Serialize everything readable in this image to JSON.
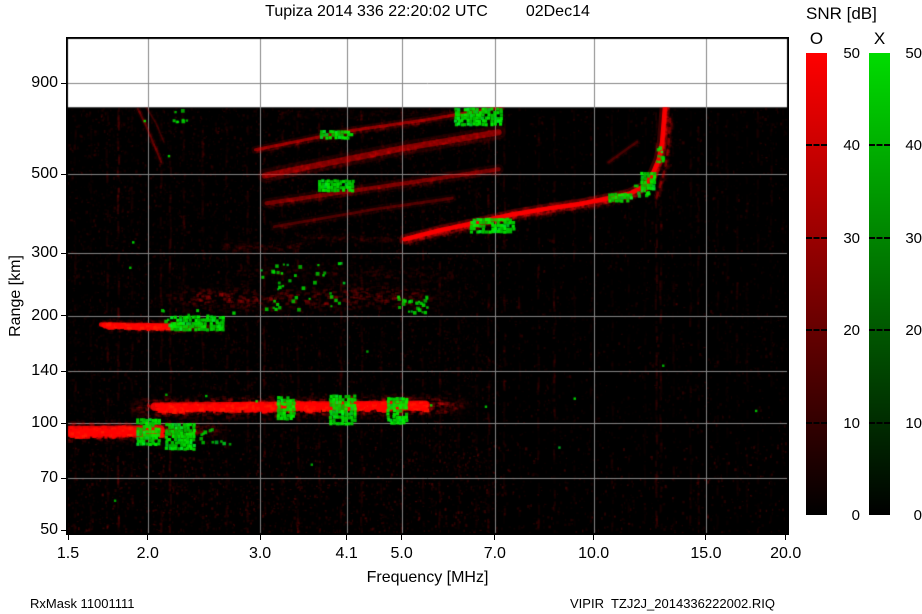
{
  "title": {
    "site_line": "Tupiza 2014 336 22:20:02 UTC",
    "date": "02Dec14"
  },
  "colorbar": {
    "title": "SNR [dB]",
    "min": 0,
    "max": 50,
    "tick_values": [
      50,
      40,
      30,
      20,
      10,
      0
    ],
    "tick_labels": [
      "50",
      "40",
      "30",
      "20",
      "10",
      "0"
    ],
    "bars": [
      {
        "label": "O",
        "polarization": "ordinary",
        "top_color": "#ff0000"
      },
      {
        "label": "X",
        "polarization": "extraordinary",
        "top_color": "#00dc00"
      }
    ]
  },
  "footer": {
    "rx_mask": "RxMask 11001111",
    "file": "VIPIR  TZJ2J_2014336222002.RIQ"
  },
  "chart_data": {
    "type": "heatmap",
    "title": "Tupiza 2014 336 22:20:02 UTC 02Dec14",
    "xlabel": "Frequency [MHz]",
    "ylabel": "Range [km]",
    "x_axis": {
      "scale": "log",
      "unit": "MHz",
      "min": 1.489,
      "max": 20.24,
      "tick_values": [
        1.5,
        2,
        3,
        4.1,
        5,
        7,
        10,
        15,
        20
      ],
      "tick_labels": [
        "1.5",
        "2.0",
        "3.0",
        "4.1",
        "5.0",
        "7.0",
        "10.0",
        "15.0",
        "20.0"
      ],
      "grid_values": [
        2,
        3,
        4.1,
        5,
        7,
        10,
        15
      ]
    },
    "y_axis": {
      "scale": "log",
      "unit": "km",
      "min": 48.5,
      "max": 1213,
      "tick_values": [
        900,
        500,
        300,
        200,
        140,
        100,
        70,
        50
      ],
      "tick_labels": [
        "900",
        "500",
        "300",
        "200",
        "140",
        "100",
        "70",
        "50"
      ],
      "grid_values": [
        900,
        500,
        300,
        200,
        140,
        100,
        70
      ]
    },
    "snr_scale": {
      "unit": "dB",
      "min": 0,
      "max": 50,
      "o_color": "#ff0000",
      "x_color": "#00dc00"
    },
    "data_max_range_km": 770,
    "layers": {
      "bands": [
        {
          "name": "es-layer-110km",
          "pol": "O",
          "f0": 1.86,
          "f1": 6.4,
          "bright_f0": 2.05,
          "bright_f1": 5.45,
          "r": 111,
          "r2": 113,
          "thick": 11,
          "glow": 9,
          "intensity": 1,
          "solid": true
        },
        {
          "name": "es-layer-95km",
          "pol": "O",
          "f0": 1.489,
          "f1": 2.69,
          "bright_f0": 1.489,
          "bright_f1": 2.09,
          "r": 95,
          "r2": 96,
          "thick": 13,
          "glow": 7,
          "intensity": 1,
          "solid": true
        },
        {
          "name": "spread-band-220km",
          "pol": "O",
          "f0": 2.0,
          "f1": 6.1,
          "bright_f0": 2.45,
          "bright_f1": 4.95,
          "r": 224,
          "r2": 228,
          "thick": 11,
          "glow": 13,
          "intensity": 0.55
        },
        {
          "name": "fuzz-265km",
          "pol": "O",
          "f0": 2.75,
          "f1": 6.0,
          "r": 268,
          "r2": 262,
          "thick": 9,
          "glow": 10,
          "intensity": 0.22
        },
        {
          "name": "band-190km",
          "pol": "O",
          "f0": 1.68,
          "f1": 2.66,
          "bright_f0": 1.69,
          "bright_f1": 2.17,
          "r": 189,
          "r2": 187,
          "thick": 6,
          "glow": 5,
          "intensity": 0.8,
          "solid": true
        },
        {
          "name": "faint-315km",
          "pol": "O",
          "f0": 2.6,
          "f1": 3.5,
          "r": 316,
          "r2": 312,
          "thick": 5,
          "glow": 6,
          "intensity": 0.26
        },
        {
          "name": "faint-332km",
          "pol": "O",
          "f0": 3.4,
          "f1": 5.2,
          "r": 334,
          "r2": 328,
          "thick": 4,
          "glow": 5,
          "intensity": 0.2
        },
        {
          "name": "topside-fuzz-745km",
          "pol": "O",
          "f0": 3.2,
          "f1": 6.3,
          "r": 745,
          "r2": 750,
          "thick": 7,
          "glow": 7,
          "intensity": 0.13
        }
      ],
      "oblique_traces": [
        {
          "name": "oblique-1",
          "pol": "O",
          "pts": [
            [
              2.95,
              585
            ],
            [
              4.15,
              662
            ],
            [
              5.5,
              712
            ],
            [
              7.15,
              772
            ]
          ],
          "w": 3,
          "glow": 5,
          "intensity": 0.5
        },
        {
          "name": "oblique-2",
          "pol": "O",
          "pts": [
            [
              3.05,
              495
            ],
            [
              4.95,
              588
            ],
            [
              7.1,
              655
            ]
          ],
          "w": 6,
          "glow": 8,
          "intensity": 0.45
        },
        {
          "name": "oblique-3",
          "pol": "O",
          "pts": [
            [
              3.07,
              414
            ],
            [
              5.0,
              470
            ],
            [
              7.1,
              516
            ]
          ],
          "w": 4,
          "glow": 6,
          "intensity": 0.4
        },
        {
          "name": "oblique-4",
          "pol": "O",
          "pts": [
            [
              3.16,
              356
            ],
            [
              4.6,
              400
            ],
            [
              6.0,
              428
            ]
          ],
          "w": 3,
          "glow": 5,
          "intensity": 0.26
        },
        {
          "name": "oblique-5",
          "pol": "O",
          "pts": [
            [
              10.55,
              540
            ],
            [
              11.7,
              616
            ]
          ],
          "w": 2.5,
          "glow": 3,
          "intensity": 0.25
        },
        {
          "name": "left-arc-1",
          "pol": "O",
          "pts": [
            [
              1.93,
              762
            ],
            [
              1.99,
              680
            ],
            [
              2.05,
              600
            ],
            [
              2.1,
              540
            ]
          ],
          "w": 2,
          "glow": 3,
          "intensity": 0.3
        },
        {
          "name": "left-arc-2",
          "pol": "O",
          "pts": [
            [
              1.99,
              770
            ],
            [
              2.06,
              695
            ],
            [
              2.12,
              615
            ]
          ],
          "w": 1.5,
          "glow": 2,
          "intensity": 0.2
        }
      ],
      "f_trace": {
        "name": "f-layer-trace",
        "pol": "O",
        "w": 4.5,
        "glow": 6,
        "intensity": 1,
        "pts": [
          [
            5.05,
            328
          ],
          [
            5.75,
            348
          ],
          [
            6.4,
            362
          ],
          [
            7.45,
            385
          ],
          [
            8.45,
            400
          ],
          [
            9.5,
            412
          ],
          [
            10.7,
            430
          ],
          [
            11.4,
            441
          ],
          [
            12.0,
            462
          ],
          [
            12.4,
            505
          ],
          [
            12.65,
            550
          ],
          [
            12.8,
            612
          ],
          [
            12.88,
            700
          ],
          [
            12.93,
            768
          ]
        ]
      },
      "f_trace_x_mode": {
        "name": "f-layer-trace-x",
        "pol": "O",
        "w": 2.5,
        "glow": 3,
        "intensity": 0.4,
        "dashed": true,
        "pts": [
          [
            12.55,
            430
          ],
          [
            12.95,
            520
          ],
          [
            13.1,
            610
          ],
          [
            13.18,
            715
          ]
        ]
      },
      "x_patches": [
        [
          3.19,
          3.4,
          102,
          119
        ],
        [
          3.85,
          4.2,
          100,
          120
        ],
        [
          4.74,
          5.08,
          101,
          118
        ],
        [
          1.92,
          2.08,
          88,
          103
        ],
        [
          2.13,
          2.36,
          85,
          100
        ],
        [
          2.17,
          2.63,
          185,
          200
        ],
        [
          3.7,
          4.18,
          450,
          482
        ],
        [
          3.72,
          4.15,
          628,
          664
        ],
        [
          6.05,
          7.15,
          695,
          768
        ],
        [
          6.4,
          7.5,
          344,
          376
        ],
        [
          10.55,
          11.4,
          418,
          442
        ],
        [
          11.85,
          12.45,
          452,
          507
        ]
      ],
      "x_clusters": [
        {
          "f0": 3.0,
          "f1": 4.1,
          "r0": 210,
          "r1": 285,
          "n": 40
        },
        {
          "f0": 4.92,
          "f1": 5.5,
          "r0": 206,
          "r1": 228,
          "n": 26
        },
        {
          "f0": 2.08,
          "f1": 2.72,
          "r0": 186,
          "r1": 210,
          "n": 22
        },
        {
          "f0": 2.18,
          "f1": 2.3,
          "r0": 690,
          "r1": 765,
          "n": 8
        },
        {
          "f0": 2.38,
          "f1": 2.75,
          "r0": 86,
          "r1": 98,
          "n": 12
        },
        {
          "f0": 12.5,
          "f1": 12.85,
          "r0": 540,
          "r1": 600,
          "n": 10
        },
        {
          "f0": 11.45,
          "f1": 12.3,
          "r0": 432,
          "r1": 470,
          "n": 14
        }
      ],
      "x_dots": [
        [
          1.77,
          61
        ],
        [
          1.87,
          275
        ],
        [
          1.89,
          324
        ],
        [
          1.97,
          710
        ],
        [
          2.15,
          566
        ],
        [
          2.13,
          121
        ],
        [
          2.46,
          120
        ],
        [
          2.95,
          116
        ],
        [
          5.54,
          113
        ],
        [
          6.75,
          112
        ],
        [
          8.8,
          86
        ],
        [
          9.3,
          118
        ],
        [
          12.8,
          146
        ],
        [
          17.9,
          109
        ],
        [
          4.4,
          160
        ],
        [
          3.6,
          77
        ]
      ],
      "noise_columns": [
        [
          1.54,
          0.25
        ],
        [
          1.63,
          0.2
        ],
        [
          1.73,
          0.3
        ],
        [
          1.8,
          0.5
        ],
        [
          1.89,
          0.25
        ],
        [
          2.1,
          0.3
        ],
        [
          2.17,
          0.45
        ],
        [
          2.28,
          0.25
        ],
        [
          2.44,
          0.3
        ],
        [
          2.66,
          0.3
        ],
        [
          2.87,
          0.35
        ],
        [
          3.05,
          0.3
        ],
        [
          3.25,
          0.25
        ],
        [
          3.44,
          0.3
        ],
        [
          3.72,
          0.3
        ],
        [
          4.02,
          0.35
        ],
        [
          4.33,
          0.3
        ],
        [
          4.65,
          0.25
        ],
        [
          5.0,
          0.3
        ],
        [
          5.4,
          0.25
        ],
        [
          5.74,
          0.3
        ],
        [
          6.15,
          0.25
        ],
        [
          6.56,
          0.2
        ],
        [
          6.85,
          0.35
        ],
        [
          7.25,
          0.3
        ],
        [
          7.66,
          0.2
        ],
        [
          8.2,
          0.3
        ],
        [
          8.68,
          0.35
        ],
        [
          9.34,
          0.2
        ],
        [
          9.9,
          0.15
        ],
        [
          10.7,
          0.2
        ],
        [
          11.35,
          0.15
        ],
        [
          12.05,
          0.2
        ],
        [
          12.55,
          0.45
        ],
        [
          12.75,
          0.35
        ],
        [
          13.35,
          0.2
        ],
        [
          14.2,
          0.25
        ],
        [
          14.6,
          0.3
        ],
        [
          15.65,
          0.2
        ],
        [
          16.2,
          0.15
        ],
        [
          16.8,
          0.2
        ],
        [
          17.4,
          0.15
        ],
        [
          18.1,
          0.2
        ],
        [
          19.0,
          0.15
        ],
        [
          19.8,
          0.12
        ]
      ]
    }
  }
}
